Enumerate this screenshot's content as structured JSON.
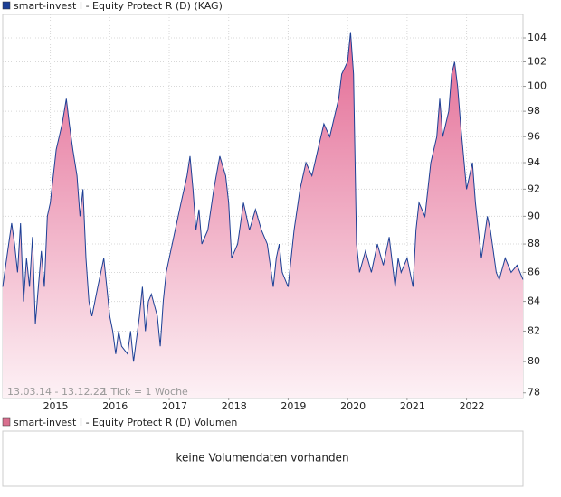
{
  "chart_data": {
    "type": "area-line",
    "series": [
      {
        "name": "smart-invest I - Equity Protect R (D) (KAG)",
        "color": "#1c3f95",
        "values": [
          85,
          86.5,
          88,
          89.5,
          88,
          86,
          89.5,
          84,
          87,
          85,
          88.5,
          82.5,
          85,
          87.5,
          85,
          90,
          91,
          93,
          95,
          96,
          97,
          99,
          97,
          95,
          93,
          90,
          92,
          87,
          84,
          83,
          85,
          87,
          85,
          83,
          82,
          80.5,
          82,
          81,
          80.5,
          82,
          80,
          83,
          85,
          82,
          84,
          84.5,
          83,
          81,
          84,
          86,
          87,
          89,
          91,
          93,
          94.5,
          92,
          89,
          90.5,
          88,
          89,
          92,
          94.5,
          93,
          91,
          87,
          88,
          91,
          89,
          90.5,
          89,
          88,
          85,
          87,
          88,
          86,
          85,
          89,
          92,
          94,
          93,
          95,
          97,
          96,
          98,
          99,
          101,
          102,
          104.5,
          101,
          88,
          86,
          87.5,
          86,
          88,
          86.5,
          88.5,
          85,
          87,
          86,
          87,
          85,
          89,
          91,
          90,
          94,
          96,
          99,
          96,
          98,
          101,
          102,
          100,
          97,
          92,
          94,
          91,
          87,
          90,
          89,
          86,
          85.5,
          87,
          86,
          86.5,
          85.5
        ]
      }
    ],
    "x": [
      2014.2,
      2014.25,
      2014.3,
      2014.35,
      2014.4,
      2014.45,
      2014.5,
      2014.55,
      2014.6,
      2014.65,
      2014.7,
      2014.75,
      2014.8,
      2014.85,
      2014.9,
      2014.95,
      2015.0,
      2015.05,
      2015.1,
      2015.15,
      2015.2,
      2015.27,
      2015.32,
      2015.38,
      2015.45,
      2015.5,
      2015.55,
      2015.6,
      2015.65,
      2015.7,
      2015.8,
      2015.9,
      2015.95,
      2016.0,
      2016.05,
      2016.1,
      2016.15,
      2016.2,
      2016.3,
      2016.35,
      2016.4,
      2016.5,
      2016.55,
      2016.6,
      2016.65,
      2016.7,
      2016.8,
      2016.85,
      2016.9,
      2016.95,
      2017.0,
      2017.1,
      2017.2,
      2017.3,
      2017.35,
      2017.4,
      2017.45,
      2017.5,
      2017.55,
      2017.65,
      2017.75,
      2017.85,
      2017.95,
      2018.0,
      2018.05,
      2018.15,
      2018.25,
      2018.35,
      2018.45,
      2018.55,
      2018.65,
      2018.75,
      2018.8,
      2018.85,
      2018.9,
      2019.0,
      2019.1,
      2019.2,
      2019.3,
      2019.4,
      2019.5,
      2019.6,
      2019.7,
      2019.8,
      2019.85,
      2019.9,
      2020.0,
      2020.05,
      2020.1,
      2020.15,
      2020.2,
      2020.3,
      2020.4,
      2020.5,
      2020.6,
      2020.7,
      2020.8,
      2020.85,
      2020.9,
      2021.0,
      2021.1,
      2021.15,
      2021.2,
      2021.3,
      2021.4,
      2021.5,
      2021.55,
      2021.6,
      2021.7,
      2021.75,
      2021.8,
      2021.85,
      2021.9,
      2022.0,
      2022.1,
      2022.15,
      2022.25,
      2022.35,
      2022.4,
      2022.5,
      2022.55,
      2022.65,
      2022.75,
      2022.85,
      2022.95
    ],
    "xlim": [
      2014.2,
      2022.95
    ],
    "xticks": [
      2015,
      2016,
      2017,
      2018,
      2019,
      2020,
      2021,
      2022
    ],
    "ylim": [
      77.7,
      106
    ],
    "yticks": [
      78,
      80,
      82,
      84,
      86,
      88,
      90,
      92,
      94,
      96,
      98,
      100,
      102,
      104
    ],
    "log_y": true,
    "grid": true,
    "date_range": "13.03.14 - 13.12.22",
    "tick_info": "1 Tick = 1 Woche",
    "volume": {
      "name": "smart-invest I - Equity Protect R (D) Volumen",
      "color": "#d9708f",
      "message": "keine Volumendaten vorhanden"
    }
  }
}
